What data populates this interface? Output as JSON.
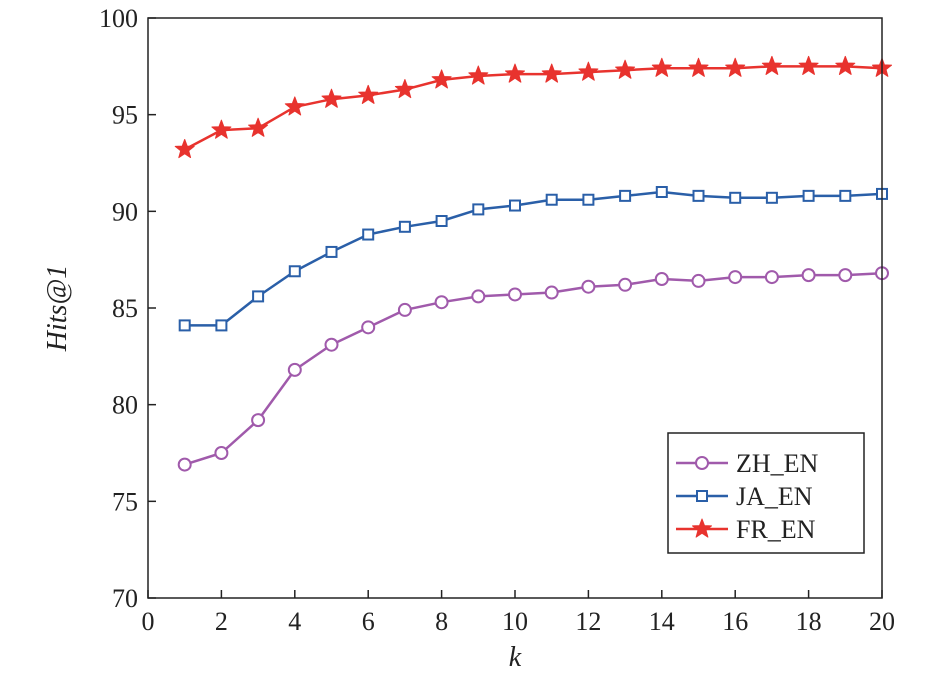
{
  "chart_data": {
    "type": "line",
    "title": "",
    "xlabel": "k",
    "ylabel": "Hits@1",
    "xlim": [
      0,
      20
    ],
    "ylim": [
      70,
      100
    ],
    "xticks": [
      0,
      2,
      4,
      6,
      8,
      10,
      12,
      14,
      16,
      18,
      20
    ],
    "yticks": [
      70,
      75,
      80,
      85,
      90,
      95,
      100
    ],
    "grid": false,
    "legend_position": "bottom-right",
    "x": [
      1,
      2,
      3,
      4,
      5,
      6,
      7,
      8,
      9,
      10,
      11,
      12,
      13,
      14,
      15,
      16,
      17,
      18,
      19,
      20
    ],
    "series": [
      {
        "name": "ZH_EN",
        "color": "#a05aab",
        "marker": "circle",
        "values": [
          76.9,
          77.5,
          79.2,
          81.8,
          83.1,
          84.0,
          84.9,
          85.3,
          85.6,
          85.7,
          85.8,
          86.1,
          86.2,
          86.5,
          86.4,
          86.6,
          86.6,
          86.7,
          86.7,
          86.8
        ]
      },
      {
        "name": "JA_EN",
        "color": "#2a5fa8",
        "marker": "square",
        "values": [
          84.1,
          84.1,
          85.6,
          86.9,
          87.9,
          88.8,
          89.2,
          89.5,
          90.1,
          90.3,
          90.6,
          90.6,
          90.8,
          91.0,
          90.8,
          90.7,
          90.7,
          90.8,
          90.8,
          90.9
        ]
      },
      {
        "name": "FR_EN",
        "color": "#e8332e",
        "marker": "star",
        "values": [
          93.2,
          94.2,
          94.3,
          95.4,
          95.8,
          96.0,
          96.3,
          96.8,
          97.0,
          97.1,
          97.1,
          97.2,
          97.3,
          97.4,
          97.4,
          97.4,
          97.5,
          97.5,
          97.5,
          97.4
        ]
      }
    ]
  }
}
